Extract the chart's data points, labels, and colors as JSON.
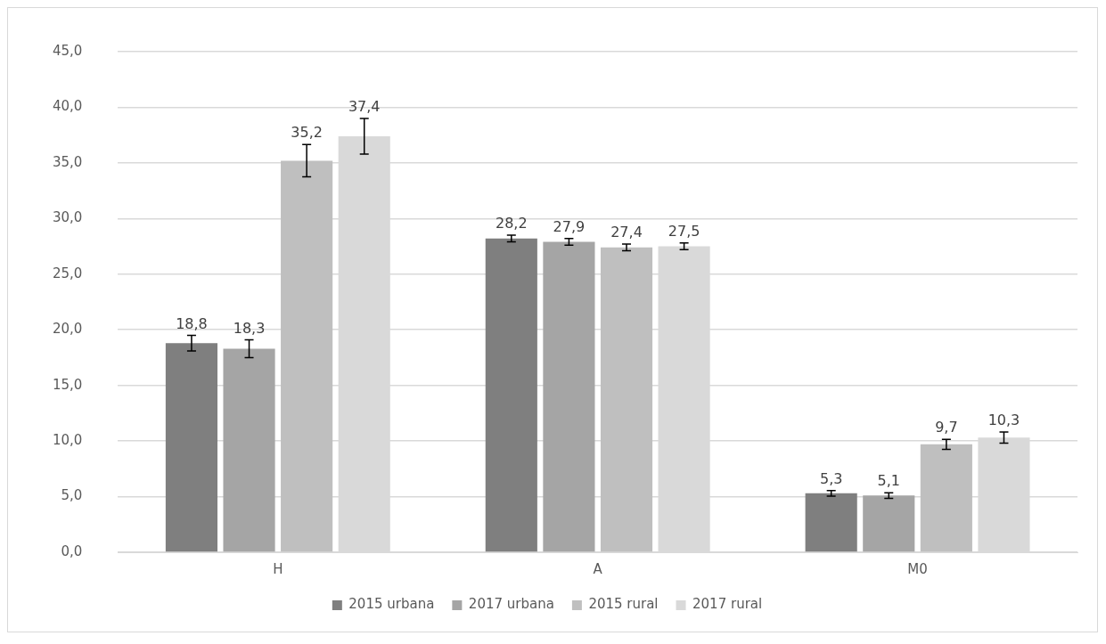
{
  "chart_data": {
    "type": "bar",
    "categories": [
      "H",
      "A",
      "M0"
    ],
    "series": [
      {
        "name": "2015 urbana",
        "color": "#7f7f7f",
        "values": [
          18.8,
          28.2,
          5.3
        ],
        "value_labels": [
          "18,8",
          "28,2",
          "5,3"
        ],
        "errors": [
          0.7,
          0.3,
          0.25
        ]
      },
      {
        "name": "2017 urbana",
        "color": "#a5a5a5",
        "values": [
          18.3,
          27.9,
          5.1
        ],
        "value_labels": [
          "18,3",
          "27,9",
          "5,1"
        ],
        "errors": [
          0.8,
          0.3,
          0.25
        ]
      },
      {
        "name": "2015 rural",
        "color": "#bfbfbf",
        "values": [
          35.2,
          27.4,
          9.7
        ],
        "value_labels": [
          "35,2",
          "27,4",
          "9,7"
        ],
        "errors": [
          1.45,
          0.3,
          0.45
        ]
      },
      {
        "name": "2017 rural",
        "color": "#d9d9d9",
        "values": [
          37.4,
          27.5,
          10.3
        ],
        "value_labels": [
          "37,4",
          "27,5",
          "10,3"
        ],
        "errors": [
          1.6,
          0.3,
          0.5
        ]
      }
    ],
    "ylim": [
      0,
      45
    ],
    "yticks": [
      {
        "value": 0,
        "label": "0,0"
      },
      {
        "value": 5,
        "label": "5,0"
      },
      {
        "value": 10,
        "label": "10,0"
      },
      {
        "value": 15,
        "label": "15,0"
      },
      {
        "value": 20,
        "label": "20,0"
      },
      {
        "value": 25,
        "label": "25,0"
      },
      {
        "value": 30,
        "label": "30,0"
      },
      {
        "value": 35,
        "label": "35,0"
      },
      {
        "value": 40,
        "label": "40,0"
      },
      {
        "value": 45,
        "label": "45,0"
      }
    ],
    "grid": "y",
    "legend": "bottom"
  }
}
